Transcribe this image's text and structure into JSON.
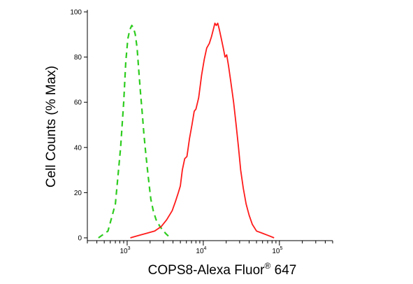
{
  "chart_data": {
    "type": "line",
    "title": "",
    "xlabel": "COPS8-Alexa Fluor",
    "xlabel_superscript": "®",
    "xlabel_suffix": " 647",
    "ylabel": "Cell Counts (% Max)",
    "x_scale": "log",
    "xlim": [
      300,
      500000
    ],
    "ylim": [
      0,
      100
    ],
    "grid": false,
    "legend": "none",
    "y_ticks": [
      {
        "value": 0,
        "label": "0"
      },
      {
        "value": 20,
        "label": "20"
      },
      {
        "value": 40,
        "label": "40"
      },
      {
        "value": 60,
        "label": "60"
      },
      {
        "value": 80,
        "label": "80"
      },
      {
        "value": 100,
        "label": "100"
      }
    ],
    "x_major_ticks": [
      {
        "value": 1000,
        "base": "10",
        "exp": "3"
      },
      {
        "value": 10000,
        "base": "10",
        "exp": "4"
      },
      {
        "value": 100000,
        "base": "10",
        "exp": "5"
      }
    ],
    "series": [
      {
        "color": "#2ecc1f",
        "dash": "dashed",
        "points": [
          [
            420,
            0
          ],
          [
            560,
            3
          ],
          [
            700,
            15
          ],
          [
            820,
            40
          ],
          [
            900,
            60
          ],
          [
            960,
            78
          ],
          [
            1020,
            88
          ],
          [
            1080,
            92
          ],
          [
            1150,
            94
          ],
          [
            1210,
            93
          ],
          [
            1280,
            90
          ],
          [
            1350,
            84
          ],
          [
            1420,
            74
          ],
          [
            1500,
            64
          ],
          [
            1580,
            55
          ],
          [
            1660,
            46
          ],
          [
            1750,
            38
          ],
          [
            1850,
            30
          ],
          [
            1950,
            23
          ],
          [
            2050,
            17
          ],
          [
            2200,
            12
          ],
          [
            2400,
            8
          ],
          [
            2700,
            5
          ],
          [
            3000,
            3
          ],
          [
            3300,
            1.5
          ],
          [
            3700,
            0
          ]
        ]
      },
      {
        "color": "#ff1a1a",
        "dash": "solid",
        "points": [
          [
            1100,
            0
          ],
          [
            1400,
            1
          ],
          [
            1800,
            2
          ],
          [
            2300,
            3
          ],
          [
            2800,
            5
          ],
          [
            3300,
            8
          ],
          [
            3900,
            12
          ],
          [
            4300,
            16
          ],
          [
            4700,
            20
          ],
          [
            5000,
            23
          ],
          [
            5300,
            30
          ],
          [
            5700,
            35
          ],
          [
            6100,
            36
          ],
          [
            6600,
            44
          ],
          [
            7100,
            50
          ],
          [
            7600,
            56
          ],
          [
            8000,
            57
          ],
          [
            8700,
            62
          ],
          [
            9500,
            72
          ],
          [
            10300,
            79
          ],
          [
            11100,
            84
          ],
          [
            12000,
            86
          ],
          [
            12800,
            89
          ],
          [
            13500,
            92
          ],
          [
            14200,
            95
          ],
          [
            14800,
            94
          ],
          [
            15500,
            95
          ],
          [
            16300,
            92
          ],
          [
            17300,
            88
          ],
          [
            18300,
            84
          ],
          [
            19300,
            80
          ],
          [
            20300,
            81
          ],
          [
            21500,
            76
          ],
          [
            23000,
            69
          ],
          [
            25000,
            60
          ],
          [
            27000,
            50
          ],
          [
            29000,
            40
          ],
          [
            31000,
            30
          ],
          [
            33500,
            22
          ],
          [
            36500,
            15
          ],
          [
            40000,
            10
          ],
          [
            44000,
            6
          ],
          [
            50000,
            3
          ],
          [
            60000,
            2
          ],
          [
            72000,
            1
          ],
          [
            85000,
            0
          ]
        ]
      }
    ]
  }
}
